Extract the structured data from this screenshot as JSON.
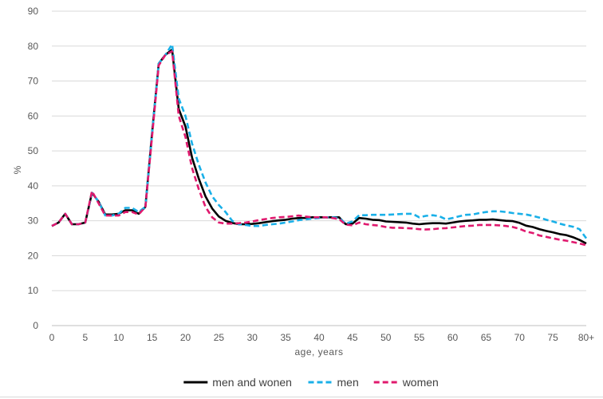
{
  "chart_data": {
    "type": "line",
    "title": "",
    "xlabel": "age, years",
    "ylabel": "%",
    "ylim": [
      0,
      90
    ],
    "yticks": [
      "0",
      "10",
      "20",
      "30",
      "40",
      "50",
      "60",
      "70",
      "80",
      "90"
    ],
    "xticks": [
      "0",
      "5",
      "10",
      "15",
      "20",
      "25",
      "30",
      "35",
      "40",
      "45",
      "50",
      "55",
      "60",
      "65",
      "70",
      "75",
      "80+"
    ],
    "x": [
      0,
      1,
      2,
      3,
      4,
      5,
      6,
      7,
      8,
      9,
      10,
      11,
      12,
      13,
      14,
      15,
      16,
      17,
      18,
      19,
      20,
      21,
      22,
      23,
      24,
      25,
      26,
      27,
      28,
      29,
      30,
      31,
      32,
      33,
      34,
      35,
      36,
      37,
      38,
      39,
      40,
      41,
      42,
      43,
      44,
      45,
      46,
      47,
      48,
      49,
      50,
      51,
      52,
      53,
      54,
      55,
      56,
      57,
      58,
      59,
      60,
      61,
      62,
      63,
      64,
      65,
      66,
      67,
      68,
      69,
      70,
      71,
      72,
      73,
      74,
      75,
      76,
      77,
      78,
      79,
      80
    ],
    "grid": true,
    "legend": "bottom",
    "series": [
      {
        "name": "men and wonen",
        "color": "#000000",
        "dash": "solid",
        "values": [
          28.5,
          29.5,
          32.0,
          29.0,
          29.0,
          29.5,
          38.0,
          35.5,
          31.8,
          31.8,
          32.0,
          33.0,
          33.0,
          32.0,
          34.0,
          55.0,
          75.0,
          77.5,
          79.0,
          62.0,
          57.0,
          48.0,
          42.0,
          37.0,
          33.5,
          31.2,
          30.0,
          29.4,
          29.0,
          29.0,
          29.1,
          29.3,
          29.6,
          29.9,
          30.1,
          30.3,
          30.6,
          30.8,
          30.8,
          31.0,
          31.0,
          31.0,
          31.0,
          31.0,
          29.0,
          29.2,
          30.8,
          30.6,
          30.3,
          30.2,
          29.8,
          29.7,
          29.6,
          29.5,
          29.2,
          29.0,
          29.2,
          29.3,
          29.3,
          29.2,
          29.5,
          29.8,
          30.0,
          30.1,
          30.3,
          30.3,
          30.4,
          30.2,
          30.0,
          29.9,
          29.4,
          28.6,
          28.2,
          27.6,
          27.1,
          26.7,
          26.2,
          25.9,
          25.3,
          24.5,
          23.5
        ]
      },
      {
        "name": "men",
        "color": "#1ab0e8",
        "dash": "dashed",
        "values": [
          28.5,
          29.5,
          32.0,
          29.0,
          29.0,
          29.5,
          38.0,
          35.5,
          31.5,
          31.5,
          32.0,
          33.7,
          33.7,
          32.5,
          34.0,
          55.0,
          75.0,
          77.5,
          80.5,
          65.0,
          60.0,
          52.0,
          46.0,
          41.0,
          37.0,
          34.5,
          32.5,
          30.0,
          29.0,
          28.8,
          28.5,
          28.5,
          28.8,
          29.0,
          29.2,
          29.5,
          29.8,
          30.2,
          30.4,
          30.6,
          30.8,
          31.0,
          31.0,
          30.8,
          29.2,
          29.8,
          31.6,
          31.6,
          31.7,
          31.7,
          31.7,
          31.8,
          31.9,
          32.0,
          32.0,
          31.0,
          31.4,
          31.6,
          31.3,
          30.4,
          30.8,
          31.3,
          31.7,
          31.8,
          32.2,
          32.5,
          32.7,
          32.7,
          32.5,
          32.2,
          32.0,
          31.8,
          31.4,
          30.9,
          30.3,
          29.8,
          29.2,
          28.7,
          28.3,
          27.6,
          25.0
        ]
      },
      {
        "name": "women",
        "color": "#e0196e",
        "dash": "dashed",
        "values": [
          28.5,
          29.5,
          32.0,
          29.0,
          29.0,
          29.5,
          38.5,
          35.0,
          31.5,
          31.5,
          31.5,
          32.5,
          32.5,
          31.8,
          34.0,
          54.0,
          74.5,
          77.5,
          78.5,
          60.0,
          54.0,
          45.0,
          39.0,
          34.0,
          31.0,
          29.5,
          29.2,
          29.2,
          29.3,
          29.5,
          29.8,
          30.2,
          30.5,
          30.8,
          31.0,
          31.1,
          31.3,
          31.5,
          31.2,
          31.0,
          31.0,
          31.0,
          30.8,
          30.5,
          28.9,
          28.7,
          29.5,
          29.0,
          28.8,
          28.6,
          28.2,
          28.0,
          28.0,
          27.9,
          27.8,
          27.6,
          27.5,
          27.6,
          27.8,
          27.9,
          28.1,
          28.3,
          28.5,
          28.6,
          28.8,
          28.8,
          28.8,
          28.7,
          28.5,
          28.2,
          27.7,
          26.9,
          26.5,
          25.8,
          25.4,
          25.0,
          24.6,
          24.3,
          23.9,
          23.5,
          23.0
        ]
      }
    ]
  }
}
